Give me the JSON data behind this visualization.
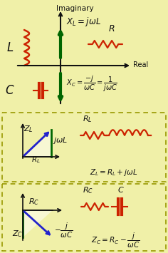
{
  "bg_color": "#f0f0a8",
  "red_color": "#cc2200",
  "green_color": "#006600",
  "blue_color": "#2222cc",
  "black_color": "#111111",
  "dash_color": "#999900",
  "figw": 2.36,
  "figh": 3.55,
  "dpi": 100
}
